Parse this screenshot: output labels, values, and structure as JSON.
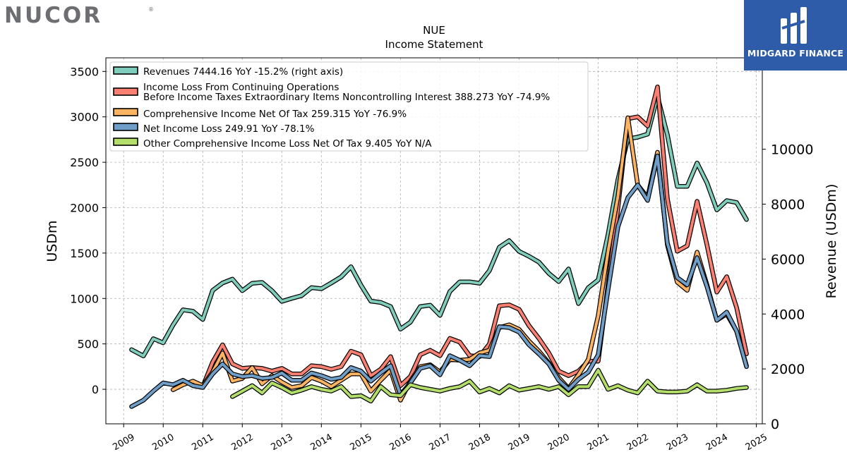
{
  "brand_left": "NUCOR",
  "brand_right": "MIDGARD FINANCE",
  "chart_data": {
    "type": "line",
    "title": "NUE",
    "subtitle": "Income Statement",
    "ylabel_left": "USDm",
    "ylabel_right": "Revenue (USDm)",
    "ylim_left": [
      -380,
      3650
    ],
    "ylim_right": [
      0,
      13330
    ],
    "xlim": [
      2008.55,
      2025.15
    ],
    "x_ticks": [
      "2009",
      "2010",
      "2011",
      "2012",
      "2013",
      "2014",
      "2015",
      "2016",
      "2017",
      "2018",
      "2019",
      "2020",
      "2021",
      "2022",
      "2023",
      "2024",
      "2025"
    ],
    "y_ticks_left": [
      "0",
      "500",
      "1000",
      "1500",
      "2000",
      "2500",
      "3000",
      "3500"
    ],
    "y_ticks_right": [
      "0",
      "2000",
      "4000",
      "6000",
      "8000",
      "10000"
    ],
    "grid": true,
    "legend_position": "top-left",
    "series": [
      {
        "name": "Revenues  7444.16 YoY -15.2% (right axis)",
        "color": "#7fcdbb",
        "axis": "right",
        "points": [
          [
            2009.2,
            2700
          ],
          [
            2009.5,
            2470
          ],
          [
            2009.75,
            3100
          ],
          [
            2010.0,
            2950
          ],
          [
            2010.25,
            3600
          ],
          [
            2010.5,
            4150
          ],
          [
            2010.75,
            4100
          ],
          [
            2011.0,
            3800
          ],
          [
            2011.25,
            4860
          ],
          [
            2011.5,
            5130
          ],
          [
            2011.75,
            5270
          ],
          [
            2012.0,
            4850
          ],
          [
            2012.25,
            5120
          ],
          [
            2012.5,
            5150
          ],
          [
            2012.75,
            4850
          ],
          [
            2013.0,
            4460
          ],
          [
            2013.25,
            4570
          ],
          [
            2013.5,
            4670
          ],
          [
            2013.75,
            4960
          ],
          [
            2014.0,
            4920
          ],
          [
            2014.25,
            5130
          ],
          [
            2014.5,
            5350
          ],
          [
            2014.75,
            5720
          ],
          [
            2015.0,
            5050
          ],
          [
            2015.25,
            4470
          ],
          [
            2015.5,
            4420
          ],
          [
            2015.75,
            4270
          ],
          [
            2016.0,
            3450
          ],
          [
            2016.25,
            3700
          ],
          [
            2016.5,
            4270
          ],
          [
            2016.75,
            4320
          ],
          [
            2017.0,
            3950
          ],
          [
            2017.25,
            4820
          ],
          [
            2017.5,
            5170
          ],
          [
            2017.75,
            5170
          ],
          [
            2018.0,
            5120
          ],
          [
            2018.25,
            5580
          ],
          [
            2018.5,
            6430
          ],
          [
            2018.75,
            6670
          ],
          [
            2019.0,
            6280
          ],
          [
            2019.25,
            6100
          ],
          [
            2019.5,
            5890
          ],
          [
            2019.75,
            5480
          ],
          [
            2020.0,
            5180
          ],
          [
            2020.25,
            5640
          ],
          [
            2020.5,
            4380
          ],
          [
            2020.75,
            4960
          ],
          [
            2021.0,
            5240
          ],
          [
            2021.25,
            6900
          ],
          [
            2021.5,
            8900
          ],
          [
            2021.75,
            10380
          ],
          [
            2022.0,
            10440
          ],
          [
            2022.25,
            10550
          ],
          [
            2022.5,
            11930
          ],
          [
            2022.75,
            10530
          ],
          [
            2023.0,
            8650
          ],
          [
            2023.25,
            8650
          ],
          [
            2023.5,
            9500
          ],
          [
            2023.75,
            8780
          ],
          [
            2024.0,
            7790
          ],
          [
            2024.25,
            8130
          ],
          [
            2024.5,
            8060
          ],
          [
            2024.75,
            7440
          ]
        ]
      },
      {
        "name": "Income Loss From Continuing Operations Before Income Taxes Extraordinary Items Noncontrolling Interest  388.273 YoY -74.9%",
        "color": "#fb8072",
        "axis": "left",
        "points": [
          [
            2011.0,
            30
          ],
          [
            2011.25,
            300
          ],
          [
            2011.5,
            490
          ],
          [
            2011.75,
            280
          ],
          [
            2012.0,
            230
          ],
          [
            2012.25,
            240
          ],
          [
            2012.5,
            230
          ],
          [
            2012.75,
            200
          ],
          [
            2013.0,
            230
          ],
          [
            2013.25,
            170
          ],
          [
            2013.5,
            170
          ],
          [
            2013.75,
            260
          ],
          [
            2014.0,
            250
          ],
          [
            2014.25,
            220
          ],
          [
            2014.5,
            250
          ],
          [
            2014.75,
            420
          ],
          [
            2015.0,
            380
          ],
          [
            2015.25,
            150
          ],
          [
            2015.5,
            220
          ],
          [
            2015.75,
            360
          ],
          [
            2016.0,
            40
          ],
          [
            2016.25,
            140
          ],
          [
            2016.5,
            380
          ],
          [
            2016.75,
            430
          ],
          [
            2017.0,
            370
          ],
          [
            2017.25,
            560
          ],
          [
            2017.5,
            520
          ],
          [
            2017.75,
            370
          ],
          [
            2018.0,
            360
          ],
          [
            2018.25,
            500
          ],
          [
            2018.5,
            920
          ],
          [
            2018.75,
            930
          ],
          [
            2019.0,
            880
          ],
          [
            2019.25,
            700
          ],
          [
            2019.5,
            560
          ],
          [
            2019.75,
            400
          ],
          [
            2020.0,
            200
          ],
          [
            2020.25,
            150
          ],
          [
            2020.5,
            200
          ],
          [
            2020.75,
            310
          ],
          [
            2021.0,
            310
          ],
          [
            2021.25,
            1150
          ],
          [
            2021.5,
            2000
          ],
          [
            2021.75,
            2980
          ],
          [
            2022.0,
            3000
          ],
          [
            2022.25,
            2900
          ],
          [
            2022.5,
            3330
          ],
          [
            2022.75,
            2100
          ],
          [
            2023.0,
            1520
          ],
          [
            2023.25,
            1580
          ],
          [
            2023.5,
            2070
          ],
          [
            2023.75,
            1590
          ],
          [
            2024.0,
            1070
          ],
          [
            2024.25,
            1240
          ],
          [
            2024.5,
            900
          ],
          [
            2024.75,
            390
          ]
        ]
      },
      {
        "name": "Comprehensive Income Net Of Tax  259.315 YoY -76.9%",
        "color": "#fdb462",
        "axis": "left",
        "points": [
          [
            2010.25,
            -5
          ],
          [
            2010.5,
            50
          ],
          [
            2010.75,
            90
          ],
          [
            2011.0,
            40
          ],
          [
            2011.25,
            190
          ],
          [
            2011.5,
            400
          ],
          [
            2011.75,
            90
          ],
          [
            2012.0,
            120
          ],
          [
            2012.25,
            240
          ],
          [
            2012.5,
            60
          ],
          [
            2012.75,
            150
          ],
          [
            2013.0,
            80
          ],
          [
            2013.25,
            20
          ],
          [
            2013.5,
            40
          ],
          [
            2013.75,
            130
          ],
          [
            2014.0,
            90
          ],
          [
            2014.25,
            30
          ],
          [
            2014.5,
            100
          ],
          [
            2014.75,
            170
          ],
          [
            2015.0,
            170
          ],
          [
            2015.25,
            -20
          ],
          [
            2015.5,
            100
          ],
          [
            2015.75,
            210
          ],
          [
            2016.0,
            -120
          ],
          [
            2016.25,
            90
          ],
          [
            2016.5,
            250
          ],
          [
            2016.75,
            270
          ],
          [
            2017.0,
            190
          ],
          [
            2017.25,
            330
          ],
          [
            2017.5,
            320
          ],
          [
            2017.75,
            330
          ],
          [
            2018.0,
            400
          ],
          [
            2018.25,
            430
          ],
          [
            2018.5,
            680
          ],
          [
            2018.75,
            710
          ],
          [
            2019.0,
            660
          ],
          [
            2019.25,
            530
          ],
          [
            2019.5,
            420
          ],
          [
            2019.75,
            290
          ],
          [
            2020.0,
            130
          ],
          [
            2020.25,
            10
          ],
          [
            2020.5,
            160
          ],
          [
            2020.75,
            330
          ],
          [
            2021.0,
            810
          ],
          [
            2021.25,
            1520
          ],
          [
            2021.5,
            2130
          ],
          [
            2021.75,
            2990
          ],
          [
            2022.0,
            2250
          ],
          [
            2022.25,
            2110
          ],
          [
            2022.5,
            2610
          ],
          [
            2022.75,
            1590
          ],
          [
            2023.0,
            1180
          ],
          [
            2023.25,
            1090
          ],
          [
            2023.5,
            1510
          ],
          [
            2023.75,
            1150
          ],
          [
            2024.0,
            760
          ],
          [
            2024.25,
            830
          ],
          [
            2024.5,
            640
          ],
          [
            2024.75,
            260
          ]
        ]
      },
      {
        "name": "Net Income Loss  249.91 YoY -78.1%",
        "color": "#6f9ec9",
        "axis": "left",
        "points": [
          [
            2009.2,
            -190
          ],
          [
            2009.5,
            -120
          ],
          [
            2009.75,
            -20
          ],
          [
            2010.0,
            70
          ],
          [
            2010.25,
            50
          ],
          [
            2010.5,
            100
          ],
          [
            2010.75,
            40
          ],
          [
            2011.0,
            20
          ],
          [
            2011.25,
            170
          ],
          [
            2011.5,
            280
          ],
          [
            2011.75,
            170
          ],
          [
            2012.0,
            140
          ],
          [
            2012.25,
            150
          ],
          [
            2012.5,
            120
          ],
          [
            2012.75,
            130
          ],
          [
            2013.0,
            180
          ],
          [
            2013.25,
            100
          ],
          [
            2013.5,
            100
          ],
          [
            2013.75,
            180
          ],
          [
            2014.0,
            150
          ],
          [
            2014.25,
            110
          ],
          [
            2014.5,
            130
          ],
          [
            2014.75,
            240
          ],
          [
            2015.0,
            200
          ],
          [
            2015.25,
            90
          ],
          [
            2015.5,
            180
          ],
          [
            2015.75,
            260
          ],
          [
            2016.0,
            -60
          ],
          [
            2016.25,
            70
          ],
          [
            2016.5,
            230
          ],
          [
            2016.75,
            260
          ],
          [
            2017.0,
            160
          ],
          [
            2017.25,
            370
          ],
          [
            2017.5,
            320
          ],
          [
            2017.75,
            260
          ],
          [
            2018.0,
            370
          ],
          [
            2018.25,
            360
          ],
          [
            2018.5,
            690
          ],
          [
            2018.75,
            680
          ],
          [
            2019.0,
            630
          ],
          [
            2019.25,
            490
          ],
          [
            2019.5,
            390
          ],
          [
            2019.75,
            280
          ],
          [
            2020.0,
            100
          ],
          [
            2020.25,
            0
          ],
          [
            2020.5,
            110
          ],
          [
            2020.75,
            190
          ],
          [
            2021.0,
            380
          ],
          [
            2021.25,
            1100
          ],
          [
            2021.5,
            1790
          ],
          [
            2021.75,
            2110
          ],
          [
            2022.0,
            2250
          ],
          [
            2022.25,
            2080
          ],
          [
            2022.5,
            2570
          ],
          [
            2022.75,
            1610
          ],
          [
            2023.0,
            1230
          ],
          [
            2023.25,
            1150
          ],
          [
            2023.5,
            1450
          ],
          [
            2023.75,
            1130
          ],
          [
            2024.0,
            760
          ],
          [
            2024.25,
            850
          ],
          [
            2024.5,
            640
          ],
          [
            2024.75,
            250
          ]
        ]
      },
      {
        "name": "Other Comprehensive Income Loss Net Of Tax  9.405 YoY N/A",
        "color": "#b3de69",
        "axis": "left",
        "points": [
          [
            2011.75,
            -80
          ],
          [
            2012.0,
            -20
          ],
          [
            2012.25,
            40
          ],
          [
            2012.5,
            -40
          ],
          [
            2012.75,
            70
          ],
          [
            2013.0,
            20
          ],
          [
            2013.25,
            -40
          ],
          [
            2013.5,
            -10
          ],
          [
            2013.75,
            30
          ],
          [
            2014.0,
            0
          ],
          [
            2014.25,
            -20
          ],
          [
            2014.5,
            30
          ],
          [
            2014.75,
            -80
          ],
          [
            2015.0,
            -70
          ],
          [
            2015.25,
            -130
          ],
          [
            2015.5,
            30
          ],
          [
            2015.75,
            -60
          ],
          [
            2016.0,
            -70
          ],
          [
            2016.25,
            50
          ],
          [
            2016.5,
            20
          ],
          [
            2016.75,
            0
          ],
          [
            2017.0,
            -20
          ],
          [
            2017.25,
            10
          ],
          [
            2017.5,
            30
          ],
          [
            2017.75,
            90
          ],
          [
            2018.0,
            -30
          ],
          [
            2018.25,
            10
          ],
          [
            2018.5,
            -40
          ],
          [
            2018.75,
            40
          ],
          [
            2019.0,
            -10
          ],
          [
            2019.25,
            10
          ],
          [
            2019.5,
            30
          ],
          [
            2019.75,
            0
          ],
          [
            2020.0,
            30
          ],
          [
            2020.25,
            -60
          ],
          [
            2020.5,
            30
          ],
          [
            2020.75,
            30
          ],
          [
            2021.0,
            210
          ],
          [
            2021.25,
            0
          ],
          [
            2021.5,
            40
          ],
          [
            2021.75,
            -10
          ],
          [
            2022.0,
            -40
          ],
          [
            2022.25,
            90
          ],
          [
            2022.5,
            -20
          ],
          [
            2022.75,
            -30
          ],
          [
            2023.0,
            -30
          ],
          [
            2023.25,
            -20
          ],
          [
            2023.5,
            50
          ],
          [
            2023.75,
            -20
          ],
          [
            2024.0,
            -20
          ],
          [
            2024.25,
            -10
          ],
          [
            2024.5,
            10
          ],
          [
            2024.75,
            20
          ]
        ]
      }
    ]
  }
}
